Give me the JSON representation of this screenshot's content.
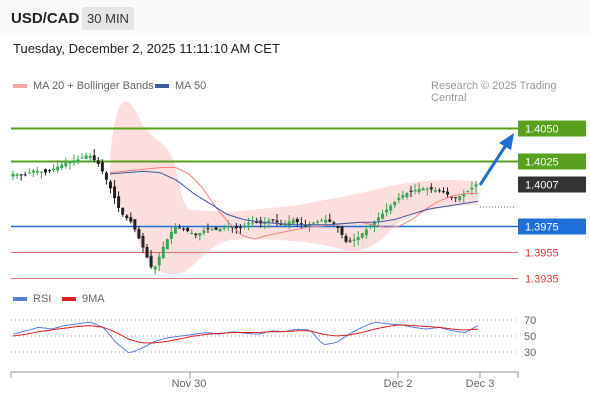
{
  "header": {
    "pair": "USD/CAD",
    "timeframe": "30 MIN",
    "datetime": "Tuesday, December 2, 2025 11:11:10 AM CET"
  },
  "legend": {
    "items": [
      {
        "label": "MA 20 + Bollinger Bands",
        "color": "#f4a6a6"
      },
      {
        "label": "MA 50",
        "color": "#3b5b9e"
      }
    ],
    "copyright": "Research © 2025 Trading Central"
  },
  "levels": [
    {
      "value": "1.4050",
      "type": "resistance",
      "color": "#5aa01f",
      "style": "box"
    },
    {
      "value": "1.4025",
      "type": "resistance",
      "color": "#5aa01f",
      "style": "box"
    },
    {
      "value": "1.4007",
      "type": "last-price",
      "color": "#333333",
      "style": "box"
    },
    {
      "value": "1.3975",
      "type": "pivot",
      "color": "#1e6fd9",
      "style": "box"
    },
    {
      "value": "1.3955",
      "type": "support",
      "color": "#e03a3a",
      "style": "text"
    },
    {
      "value": "1.3935",
      "type": "support",
      "color": "#e03a3a",
      "style": "text"
    }
  ],
  "rsi_panel": {
    "legend": [
      {
        "label": "RSI",
        "color": "#5b7fd6"
      },
      {
        "label": "9MA",
        "color": "#e02020"
      }
    ],
    "ticks": [
      "70",
      "50",
      "30"
    ]
  },
  "x_axis": {
    "labels": [
      "Nov 30",
      "Dec 2",
      "Dec 3"
    ]
  },
  "chart_data": {
    "type": "candlestick",
    "instrument": "USD/CAD",
    "interval": "30 MIN",
    "price_range": [
      1.3926,
      1.4064
    ],
    "close_path": [
      1.4015,
      1.4014,
      1.4018,
      1.4016,
      1.402,
      1.4024,
      1.4026,
      1.403,
      1.4022,
      1.4005,
      1.3985,
      1.3978,
      1.396,
      1.394,
      1.396,
      1.3975,
      1.3972,
      1.3968,
      1.3973,
      1.3972,
      1.3975,
      1.3973,
      1.3978,
      1.3977,
      1.398,
      1.3976,
      1.398,
      1.3975,
      1.3978,
      1.398,
      1.3976,
      1.3962,
      1.3966,
      1.3974,
      1.3982,
      1.399,
      1.3998,
      1.4002,
      1.4004,
      1.4003,
      1.4001,
      1.3996,
      1.4,
      1.4007
    ],
    "ma20_path": [
      1.4016,
      1.4017,
      1.4018,
      1.4019,
      1.402,
      1.402,
      1.4015,
      1.4005,
      1.399,
      1.3978,
      1.3968,
      1.3965,
      1.3968,
      1.397,
      1.3972,
      1.3974,
      1.3975,
      1.3976,
      1.3977,
      1.3978,
      1.3976,
      1.3974,
      1.3975,
      1.398,
      1.3988,
      1.3994,
      1.3998,
      1.4,
      1.4
    ],
    "ma50_path": [
      1.4015,
      1.4016,
      1.4017,
      1.4016,
      1.401,
      1.4,
      1.3992,
      1.3984,
      1.398,
      1.3978,
      1.3977,
      1.3976,
      1.3976,
      1.3976,
      1.3977,
      1.3978,
      1.3978,
      1.398,
      1.3984,
      1.3988,
      1.399,
      1.3992,
      1.3994
    ],
    "forecast_arrow": {
      "from": 1.4007,
      "to": 1.405,
      "direction": "up"
    },
    "rsi_path": [
      52,
      56,
      60,
      58,
      62,
      64,
      66,
      60,
      42,
      30,
      36,
      44,
      48,
      50,
      52,
      54,
      52,
      55,
      53,
      52,
      56,
      55,
      58,
      57,
      40,
      42,
      52,
      60,
      66,
      64,
      63,
      60,
      58,
      60,
      56,
      54,
      62
    ],
    "rsi_ma_path": [
      50,
      52,
      55,
      57,
      59,
      61,
      62,
      60,
      54,
      46,
      42,
      42,
      44,
      47,
      50,
      52,
      53,
      54,
      54,
      54,
      55,
      55,
      56,
      56,
      52,
      50,
      51,
      54,
      58,
      61,
      63,
      62,
      61,
      60,
      58,
      57,
      58
    ],
    "rsi_range": [
      20,
      80
    ]
  }
}
